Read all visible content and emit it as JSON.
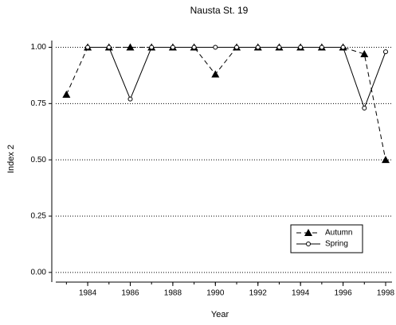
{
  "chart_data": {
    "type": "line",
    "title": "Nausta St. 19",
    "xlabel": "Year",
    "ylabel": "Index 2",
    "x": [
      1983,
      1984,
      1985,
      1986,
      1987,
      1988,
      1989,
      1990,
      1991,
      1992,
      1993,
      1994,
      1995,
      1996,
      1997,
      1998
    ],
    "series": [
      {
        "name": "Autumn",
        "color": "#000000",
        "line_style": "dashed",
        "marker": "triangle",
        "values": [
          0.79,
          1.0,
          1.0,
          1.0,
          1.0,
          1.0,
          1.0,
          0.88,
          1.0,
          1.0,
          1.0,
          1.0,
          1.0,
          1.0,
          0.97,
          0.5
        ]
      },
      {
        "name": "Spring",
        "color": "#000000",
        "line_style": "solid",
        "marker": "circle",
        "values": [
          null,
          1.0,
          1.0,
          0.77,
          1.0,
          1.0,
          1.0,
          1.0,
          1.0,
          1.0,
          1.0,
          1.0,
          1.0,
          1.0,
          0.73,
          0.98
        ]
      }
    ],
    "xlim": [
      1982.5,
      1998.3
    ],
    "xticks": [
      1984,
      1986,
      1988,
      1990,
      1992,
      1994,
      1996,
      1998
    ],
    "ylim": [
      -0.043,
      1.03
    ],
    "yticks": [
      {
        "value": 0,
        "label": "0.00"
      },
      {
        "value": 0.25,
        "label": "0.25"
      },
      {
        "value": 0.5,
        "label": "0.50"
      },
      {
        "value": 0.75,
        "label": "0.75"
      },
      {
        "value": 1,
        "label": "1.00"
      }
    ],
    "grid": true,
    "legend": "lower right"
  }
}
